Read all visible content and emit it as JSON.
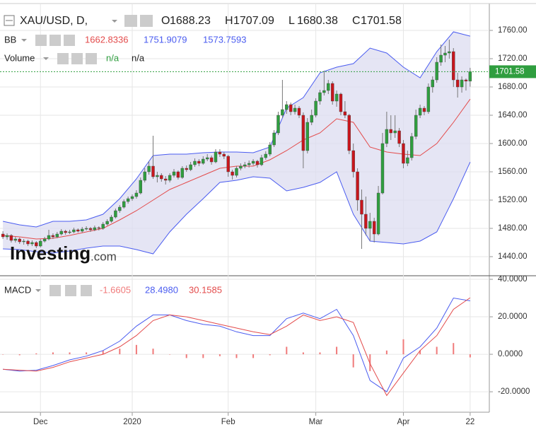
{
  "chart_data": [
    {
      "type": "candlestick",
      "title": "XAU/USD, D,",
      "ohlc_labels": [
        "O",
        "H",
        "L",
        "C"
      ],
      "indicator": "BB",
      "volume_label": "Volume",
      "volume_values": [
        "n/a",
        "n/a"
      ],
      "watermark": "Investing",
      "watermark_suffix": ".com",
      "up_color": "#2f9e3f",
      "down_color": "#c8161d",
      "grid": true,
      "ylim": [
        1413,
        1798
      ],
      "yticks": [
        {
          "value": 1440,
          "label": "1440.00"
        },
        {
          "value": 1480,
          "label": "1480.00"
        },
        {
          "value": 1520,
          "label": "1520.00"
        },
        {
          "value": 1560,
          "label": "1560.00"
        },
        {
          "value": 1600,
          "label": "1600.00"
        },
        {
          "value": 1640,
          "label": "1640.00"
        },
        {
          "value": 1680,
          "label": "1680.00"
        },
        {
          "value": 1720,
          "label": "1720.00"
        },
        {
          "value": 1760,
          "label": "1760.00"
        }
      ],
      "ohlc": [
        [
          1472,
          1476,
          1465,
          1468
        ],
        [
          1468,
          1473,
          1464,
          1470
        ],
        [
          1470,
          1472,
          1460,
          1463
        ],
        [
          1463,
          1468,
          1460,
          1465
        ],
        [
          1465,
          1467,
          1458,
          1461
        ],
        [
          1461,
          1465,
          1457,
          1462
        ],
        [
          1462,
          1464,
          1455,
          1458
        ],
        [
          1458,
          1463,
          1455,
          1460
        ],
        [
          1460,
          1462,
          1452,
          1455
        ],
        [
          1455,
          1465,
          1453,
          1462
        ],
        [
          1462,
          1468,
          1460,
          1465
        ],
        [
          1465,
          1478,
          1463,
          1470
        ],
        [
          1470,
          1473,
          1465,
          1468
        ],
        [
          1468,
          1475,
          1466,
          1472
        ],
        [
          1472,
          1479,
          1470,
          1476
        ],
        [
          1476,
          1478,
          1471,
          1474
        ],
        [
          1474,
          1478,
          1472,
          1475
        ],
        [
          1475,
          1481,
          1473,
          1478
        ],
        [
          1478,
          1480,
          1474,
          1476
        ],
        [
          1476,
          1482,
          1474,
          1479
        ],
        [
          1479,
          1483,
          1477,
          1480
        ],
        [
          1480,
          1482,
          1475,
          1478
        ],
        [
          1478,
          1484,
          1476,
          1481
        ],
        [
          1481,
          1483,
          1477,
          1480
        ],
        [
          1480,
          1489,
          1478,
          1486
        ],
        [
          1486,
          1493,
          1484,
          1490
        ],
        [
          1490,
          1499,
          1488,
          1496
        ],
        [
          1496,
          1508,
          1494,
          1505
        ],
        [
          1505,
          1513,
          1502,
          1510
        ],
        [
          1510,
          1521,
          1508,
          1518
        ],
        [
          1518,
          1525,
          1515,
          1522
        ],
        [
          1522,
          1528,
          1519,
          1525
        ],
        [
          1525,
          1534,
          1522,
          1530
        ],
        [
          1530,
          1552,
          1528,
          1548
        ],
        [
          1548,
          1565,
          1545,
          1560
        ],
        [
          1560,
          1575,
          1556,
          1568
        ],
        [
          1568,
          1611,
          1550,
          1553
        ],
        [
          1553,
          1560,
          1545,
          1555
        ],
        [
          1555,
          1558,
          1546,
          1550
        ],
        [
          1550,
          1554,
          1542,
          1548
        ],
        [
          1548,
          1558,
          1545,
          1555
        ],
        [
          1555,
          1564,
          1552,
          1560
        ],
        [
          1560,
          1562,
          1549,
          1552
        ],
        [
          1552,
          1568,
          1550,
          1565
        ],
        [
          1565,
          1569,
          1560,
          1563
        ],
        [
          1563,
          1574,
          1561,
          1570
        ],
        [
          1570,
          1579,
          1567,
          1575
        ],
        [
          1575,
          1578,
          1568,
          1572
        ],
        [
          1572,
          1582,
          1570,
          1578
        ],
        [
          1578,
          1585,
          1575,
          1580
        ],
        [
          1580,
          1583,
          1570,
          1574
        ],
        [
          1574,
          1592,
          1572,
          1588
        ],
        [
          1588,
          1592,
          1581,
          1585
        ],
        [
          1585,
          1588,
          1578,
          1582
        ],
        [
          1582,
          1584,
          1553,
          1560
        ],
        [
          1560,
          1563,
          1549,
          1555
        ],
        [
          1555,
          1568,
          1552,
          1565
        ],
        [
          1565,
          1572,
          1562,
          1568
        ],
        [
          1568,
          1574,
          1565,
          1570
        ],
        [
          1570,
          1576,
          1566,
          1572
        ],
        [
          1572,
          1578,
          1569,
          1575
        ],
        [
          1575,
          1577,
          1566,
          1570
        ],
        [
          1570,
          1584,
          1568,
          1580
        ],
        [
          1580,
          1589,
          1577,
          1585
        ],
        [
          1585,
          1602,
          1582,
          1598
        ],
        [
          1598,
          1619,
          1595,
          1615
        ],
        [
          1615,
          1645,
          1612,
          1640
        ],
        [
          1640,
          1690,
          1636,
          1648
        ],
        [
          1648,
          1660,
          1642,
          1655
        ],
        [
          1655,
          1658,
          1640,
          1645
        ],
        [
          1645,
          1655,
          1641,
          1650
        ],
        [
          1650,
          1653,
          1636,
          1640
        ],
        [
          1640,
          1644,
          1565,
          1590
        ],
        [
          1590,
          1636,
          1586,
          1630
        ],
        [
          1630,
          1648,
          1626,
          1640
        ],
        [
          1640,
          1664,
          1637,
          1660
        ],
        [
          1660,
          1676,
          1655,
          1672
        ],
        [
          1672,
          1703,
          1668,
          1675
        ],
        [
          1675,
          1690,
          1670,
          1685
        ],
        [
          1685,
          1688,
          1655,
          1660
        ],
        [
          1660,
          1675,
          1652,
          1670
        ],
        [
          1670,
          1672,
          1640,
          1645
        ],
        [
          1645,
          1660,
          1636,
          1640
        ],
        [
          1640,
          1642,
          1585,
          1590
        ],
        [
          1590,
          1600,
          1552,
          1560
        ],
        [
          1560,
          1565,
          1505,
          1520
        ],
        [
          1520,
          1535,
          1451,
          1500
        ],
        [
          1500,
          1525,
          1470,
          1480
        ],
        [
          1480,
          1502,
          1462,
          1490
        ],
        [
          1490,
          1495,
          1460,
          1472
        ],
        [
          1472,
          1540,
          1470,
          1530
        ],
        [
          1530,
          1615,
          1528,
          1600
        ],
        [
          1600,
          1645,
          1595,
          1620
        ],
        [
          1620,
          1640,
          1605,
          1615
        ],
        [
          1615,
          1640,
          1608,
          1618
        ],
        [
          1618,
          1622,
          1595,
          1600
        ],
        [
          1600,
          1605,
          1565,
          1572
        ],
        [
          1572,
          1590,
          1568,
          1580
        ],
        [
          1580,
          1615,
          1576,
          1610
        ],
        [
          1610,
          1648,
          1606,
          1640
        ],
        [
          1640,
          1655,
          1636,
          1650
        ],
        [
          1650,
          1653,
          1640,
          1645
        ],
        [
          1645,
          1685,
          1642,
          1680
        ],
        [
          1680,
          1695,
          1672,
          1690
        ],
        [
          1690,
          1722,
          1686,
          1715
        ],
        [
          1715,
          1740,
          1710,
          1725
        ],
        [
          1725,
          1738,
          1715,
          1728
        ],
        [
          1728,
          1747,
          1720,
          1730
        ],
        [
          1730,
          1735,
          1680,
          1690
        ],
        [
          1690,
          1700,
          1665,
          1680
        ],
        [
          1680,
          1695,
          1672,
          1690
        ],
        [
          1690,
          1692,
          1675,
          1688.23
        ],
        [
          1688.23,
          1707.09,
          1680.38,
          1701.58
        ]
      ],
      "series": [
        {
          "color": "#e34b4b",
          "x": [
            0,
            4,
            8,
            12,
            16,
            20,
            24,
            28,
            32,
            36,
            40,
            44,
            48,
            52,
            56,
            60,
            64,
            68,
            72,
            76,
            80,
            84,
            88,
            92,
            96,
            100,
            104,
            108,
            112
          ],
          "values": [
            1470,
            1468,
            1465,
            1466,
            1470,
            1475,
            1480,
            1492,
            1505,
            1520,
            1535,
            1545,
            1555,
            1565,
            1568,
            1568,
            1577,
            1590,
            1605,
            1615,
            1635,
            1630,
            1595,
            1588,
            1585,
            1583,
            1600,
            1630,
            1662.8336
          ]
        },
        {
          "color": "#4a5cf0",
          "x": [
            0,
            4,
            8,
            12,
            16,
            20,
            24,
            28,
            32,
            36,
            40,
            44,
            48,
            52,
            56,
            60,
            64,
            68,
            72,
            76,
            80,
            84,
            88,
            92,
            96,
            100,
            104,
            108,
            112
          ],
          "values": [
            1490,
            1485,
            1482,
            1490,
            1490,
            1492,
            1500,
            1522,
            1550,
            1583,
            1585,
            1585,
            1587,
            1588,
            1588,
            1587,
            1595,
            1650,
            1665,
            1700,
            1708,
            1713,
            1735,
            1728,
            1708,
            1693,
            1730,
            1758,
            1751.9079
          ]
        },
        {
          "color": "#4a5cf0",
          "x": [
            0,
            4,
            8,
            12,
            16,
            20,
            24,
            28,
            32,
            36,
            40,
            44,
            48,
            52,
            56,
            60,
            64,
            68,
            72,
            76,
            80,
            84,
            88,
            92,
            96,
            100,
            104,
            108,
            112
          ],
          "values": [
            1451,
            1450,
            1447,
            1445,
            1448,
            1452,
            1455,
            1455,
            1450,
            1444,
            1475,
            1500,
            1522,
            1545,
            1548,
            1553,
            1551,
            1533,
            1538,
            1545,
            1560,
            1500,
            1462,
            1460,
            1458,
            1462,
            1475,
            1522,
            1573.7593
          ]
        }
      ]
    },
    {
      "type": "macd",
      "title": "MACD",
      "xlim": [
        -0.7,
        116.6
      ],
      "xticks": [
        {
          "value": 9,
          "label": "Dec"
        },
        {
          "value": 31,
          "label": "2020"
        },
        {
          "value": 54,
          "label": "Feb"
        },
        {
          "value": 75,
          "label": "Mar"
        },
        {
          "value": 96,
          "label": "Apr"
        },
        {
          "value": 112,
          "label": "22"
        }
      ],
      "ylim": [
        -30.9,
        41.9
      ],
      "yticks": [
        {
          "value": -20,
          "label": "-20.0000"
        },
        {
          "value": 0,
          "label": "0.0000"
        },
        {
          "value": 20,
          "label": "20.0000"
        },
        {
          "value": 40,
          "label": "40.0000"
        }
      ],
      "series": [
        {
          "kind": "bar",
          "color": "#f07a7a",
          "x": [
            0,
            4,
            8,
            12,
            16,
            20,
            24,
            28,
            32,
            36,
            40,
            44,
            48,
            52,
            56,
            60,
            64,
            68,
            72,
            76,
            80,
            84,
            88,
            92,
            96,
            100,
            104,
            108,
            112
          ],
          "values": [
            0,
            -0.5,
            0.5,
            1,
            1,
            1,
            2,
            3,
            5,
            3,
            0,
            -2,
            -2,
            -1,
            -2,
            -2,
            -0.5,
            4,
            1,
            1,
            4,
            -7,
            -9,
            2,
            8,
            2,
            4,
            6,
            -1.6605
          ]
        },
        {
          "kind": "line",
          "color": "#4a5cf0",
          "x": [
            0,
            4,
            8,
            12,
            16,
            20,
            24,
            28,
            32,
            36,
            40,
            44,
            48,
            52,
            56,
            60,
            64,
            68,
            72,
            76,
            80,
            84,
            88,
            92,
            96,
            100,
            104,
            108,
            112
          ],
          "values": [
            -8,
            -9,
            -8.5,
            -6,
            -3,
            -1,
            2,
            7,
            15,
            21,
            21,
            18,
            16,
            15,
            12,
            10,
            10,
            19,
            22,
            19,
            24,
            10,
            -14,
            -20,
            -2,
            4,
            14,
            30,
            28.498
          ],
          "value_labels": [
            null,
            null,
            null,
            null,
            null,
            null,
            null,
            null,
            null,
            null,
            null,
            null,
            null,
            null,
            null,
            null,
            null,
            null,
            null,
            null,
            null,
            null,
            null,
            null,
            null,
            null,
            null,
            null,
            "28.4980"
          ]
        },
        {
          "kind": "line",
          "color": "#e34b4b",
          "x": [
            0,
            4,
            8,
            12,
            16,
            20,
            24,
            28,
            32,
            36,
            40,
            44,
            48,
            52,
            56,
            60,
            64,
            68,
            72,
            76,
            80,
            84,
            88,
            92,
            96,
            100,
            104,
            108,
            112
          ],
          "values": [
            -8,
            -8.5,
            -9,
            -7,
            -4,
            -2,
            0,
            4,
            10,
            18,
            21,
            20,
            18,
            16,
            14,
            12,
            10.5,
            15,
            21,
            18,
            20,
            17,
            -5,
            -22,
            -10,
            2,
            10,
            24,
            30.1585
          ]
        }
      ]
    }
  ]
}
